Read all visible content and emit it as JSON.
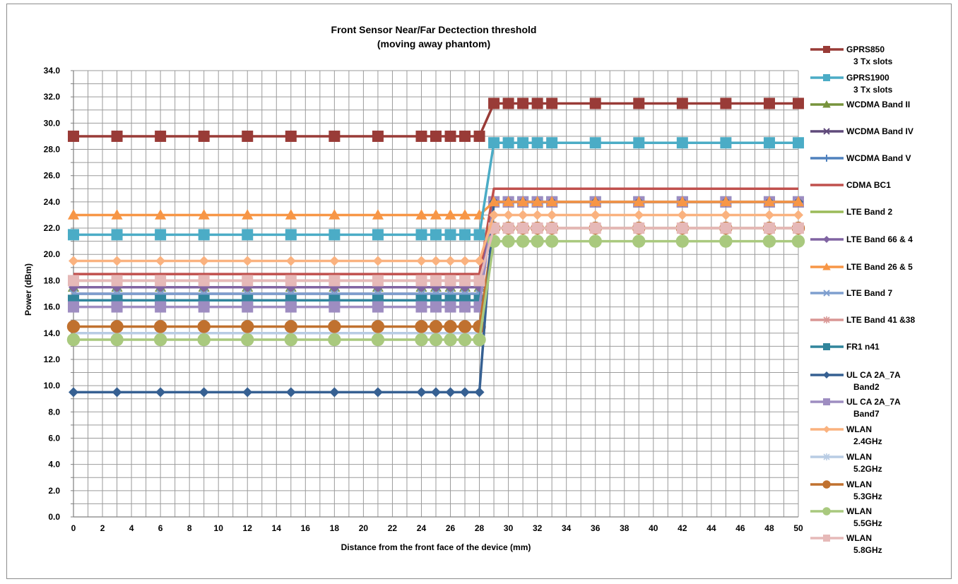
{
  "chart_data": {
    "type": "line",
    "title": "Front Sensor Near/Far Dectection threshold",
    "subtitle": "(moving away  phantom)",
    "xlabel": "Distance from the front face of the device (mm)",
    "ylabel": "Power (dBm)",
    "x": [
      0,
      3,
      6,
      9,
      12,
      15,
      18,
      21,
      24,
      25,
      26,
      27,
      28,
      29,
      30,
      31,
      32,
      33,
      36,
      39,
      42,
      45,
      48,
      50
    ],
    "xticks": [
      "0",
      "2",
      "4",
      "6",
      "8",
      "10",
      "12",
      "14",
      "16",
      "18",
      "20",
      "22",
      "24",
      "26",
      "28",
      "30",
      "32",
      "34",
      "36",
      "38",
      "40",
      "42",
      "44",
      "46",
      "48",
      "50"
    ],
    "xlim": [
      0,
      50
    ],
    "ylim": [
      0,
      34
    ],
    "yticks": [
      "0.0",
      "2.0",
      "4.0",
      "6.0",
      "8.0",
      "10.0",
      "12.0",
      "14.0",
      "16.0",
      "18.0",
      "20.0",
      "22.0",
      "24.0",
      "26.0",
      "28.0",
      "30.0",
      "32.0",
      "34.0"
    ],
    "grid": true,
    "legend_position": "right",
    "series": [
      {
        "name": "GPRS850",
        "name_line2": "3 Tx slots",
        "color": "#993B37",
        "marker": "square",
        "near": 29.0,
        "far": 31.5
      },
      {
        "name": "GPRS1900",
        "name_line2": "3 Tx slots",
        "color": "#4BACC6",
        "marker": "square",
        "near": 21.5,
        "far": 28.5
      },
      {
        "name": "WCDMA Band II",
        "name_line2": "",
        "color": "#77933C",
        "marker": "triangle",
        "near": 17.5,
        "far": 24.0
      },
      {
        "name": "WCDMA Band IV",
        "name_line2": "",
        "color": "#604A7B",
        "marker": "x",
        "near": 17.0,
        "far": 24.0
      },
      {
        "name": "WCDMA Band V",
        "name_line2": "",
        "color": "#4F81BD",
        "marker": "plus",
        "near": 16.5,
        "far": 24.0
      },
      {
        "name": "CDMA BC1",
        "name_line2": "",
        "color": "#C0504D",
        "marker": "none",
        "near": 18.5,
        "far": 25.0
      },
      {
        "name": "LTE Band 2",
        "name_line2": "",
        "color": "#9BBB59",
        "marker": "none",
        "near": 18.0,
        "far": 24.0
      },
      {
        "name": "LTE Band 66 & 4",
        "name_line2": "",
        "color": "#8064A2",
        "marker": "diamond",
        "near": 17.5,
        "far": 24.0
      },
      {
        "name": "LTE Band 26 & 5",
        "name_line2": "",
        "color": "#F79646",
        "marker": "triangle",
        "near": 23.0,
        "far": 24.0
      },
      {
        "name": "LTE Band 7",
        "name_line2": "",
        "color": "#7F9FCF",
        "marker": "x",
        "near": 17.0,
        "far": 24.0
      },
      {
        "name": "LTE Band 41 &38",
        "name_line2": "",
        "color": "#D99694",
        "marker": "asterisk",
        "near": 18.0,
        "far": 24.0
      },
      {
        "name": "FR1 n41",
        "name_line2": "",
        "color": "#31859C",
        "marker": "square",
        "near": 16.5,
        "far": 24.0
      },
      {
        "name": "UL CA 2A_7A",
        "name_line2": "Band2",
        "color": "#366092",
        "marker": "diamond",
        "near": 9.5,
        "far": 24.0
      },
      {
        "name": "UL CA 2A_7A",
        "name_line2": "Band7",
        "color": "#9E8DC1",
        "marker": "square",
        "near": 16.0,
        "far": 24.0
      },
      {
        "name": "WLAN",
        "name_line2": "2.4GHz",
        "color": "#FAB27F",
        "marker": "diamond",
        "near": 19.5,
        "far": 23.0
      },
      {
        "name": "WLAN",
        "name_line2": "5.2GHz",
        "color": "#B8CCE4",
        "marker": "asterisk",
        "near": 14.0,
        "far": 22.0
      },
      {
        "name": "WLAN",
        "name_line2": "5.3GHz",
        "color": "#C0712F",
        "marker": "circle",
        "near": 14.5,
        "far": 22.0
      },
      {
        "name": "WLAN",
        "name_line2": "5.5GHz",
        "color": "#A9C97E",
        "marker": "circle",
        "near": 13.5,
        "far": 21.0
      },
      {
        "name": "WLAN",
        "name_line2": "5.8GHz",
        "color": "#E6B9B8",
        "marker": "square",
        "near": 18.0,
        "far": 22.0
      }
    ],
    "draw_order": [
      2,
      3,
      4,
      6,
      9,
      10,
      11,
      7,
      13,
      5,
      15,
      16,
      12,
      17,
      18,
      14,
      8,
      1,
      0
    ]
  }
}
